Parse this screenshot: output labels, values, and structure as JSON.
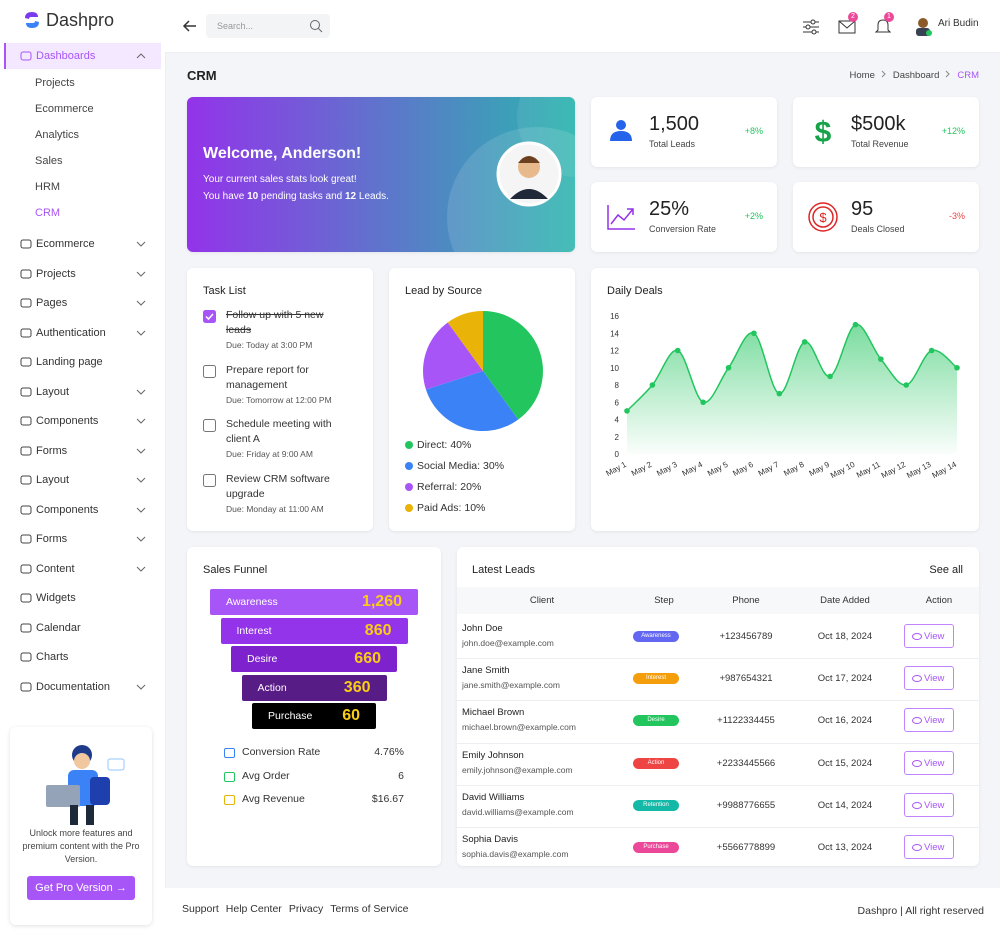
{
  "brand": "Dashpro",
  "search_placeholder": "Search...",
  "header": {
    "message_count": "2",
    "notification_count": "1",
    "user_name": "Ari Budin"
  },
  "sidebar": {
    "items": [
      {
        "label": "Dashboards",
        "children": [
          "Projects",
          "Ecommerce",
          "Analytics",
          "Sales",
          "HRM",
          "CRM"
        ]
      },
      {
        "label": "Ecommerce",
        "expandable": true
      },
      {
        "label": "Projects",
        "expandable": true
      },
      {
        "label": "Pages",
        "expandable": true
      },
      {
        "label": "Authentication",
        "expandable": true
      },
      {
        "label": "Landing page",
        "expandable": false
      },
      {
        "label": "Layout",
        "expandable": true
      },
      {
        "label": "Components",
        "expandable": true
      },
      {
        "label": "Forms",
        "expandable": true
      },
      {
        "label": "Layout",
        "expandable": true
      },
      {
        "label": "Components",
        "expandable": true
      },
      {
        "label": "Forms",
        "expandable": true
      },
      {
        "label": "Content",
        "expandable": true
      },
      {
        "label": "Widgets",
        "expandable": false
      },
      {
        "label": "Calendar",
        "expandable": false
      },
      {
        "label": "Charts",
        "expandable": false
      },
      {
        "label": "Documentation",
        "expandable": true
      }
    ]
  },
  "promo": {
    "text": "Unlock more features and premium content with the Pro Version.",
    "button": "Get Pro Version →"
  },
  "page": {
    "title": "CRM",
    "breadcrumb": [
      "Home",
      "Dashboard",
      "CRM"
    ]
  },
  "welcome": {
    "title": "Welcome, Anderson!",
    "line1": "Your current sales stats look great!",
    "line2": [
      "You have ",
      "10",
      " pending tasks and ",
      "12",
      " Leads."
    ]
  },
  "stats": [
    {
      "value": "1,500",
      "label": "Total Leads",
      "change": "+8%",
      "color": "#2563eb"
    },
    {
      "value": "$500k",
      "label": "Total Revenue",
      "change": "+12%",
      "color": "#16a34a"
    },
    {
      "value": "25%",
      "label": "Conversion Rate",
      "change": "+2%",
      "color": "#9333ea"
    },
    {
      "value": "95",
      "label": "Deals Closed",
      "change": "-3%",
      "color": "#dc2626"
    }
  ],
  "tasks": {
    "title": "Task List",
    "items": [
      {
        "text": "Follow up with 5 new leads",
        "due": "Due: Today at 3:00 PM",
        "done": true
      },
      {
        "text": "Prepare report for management",
        "due": "Due: Tomorrow at 12:00 PM",
        "done": false
      },
      {
        "text": "Schedule meeting with client A",
        "due": "Due: Friday at 9:00 AM",
        "done": false
      },
      {
        "text": "Review CRM software upgrade",
        "due": "Due: Monday at 11:00 AM",
        "done": false
      }
    ]
  },
  "chart_data": [
    {
      "type": "pie",
      "title": "Lead by Source",
      "categories": [
        "Direct",
        "Social Media",
        "Referral",
        "Paid Ads"
      ],
      "values": [
        40,
        30,
        20,
        10
      ],
      "value_labels": [
        "40%",
        "30%",
        "20%",
        "10%"
      ],
      "colors": [
        "#22c55e",
        "#3b82f6",
        "#a855f7",
        "#eab308"
      ]
    },
    {
      "type": "line",
      "title": "Daily Deals",
      "x": [
        "May 1",
        "May 2",
        "May 3",
        "May 4",
        "May 5",
        "May 6",
        "May 7",
        "May 8",
        "May 9",
        "May 10",
        "May 11",
        "May 12",
        "May 13",
        "May 14"
      ],
      "values": [
        5,
        8,
        12,
        6,
        10,
        14,
        7,
        13,
        9,
        15,
        11,
        8,
        12,
        10
      ],
      "color": "#22c55e",
      "ylim": [
        0,
        16
      ],
      "yticks": [
        0,
        2,
        4,
        6,
        8,
        10,
        12,
        14,
        16
      ]
    }
  ],
  "funnel": {
    "title": "Sales Funnel",
    "stages": [
      {
        "name": "Awareness",
        "value": "1,260",
        "color": "#a855f7"
      },
      {
        "name": "Interest",
        "value": "860",
        "color": "#9333ea"
      },
      {
        "name": "Desire",
        "value": "660",
        "color": "#7e22ce"
      },
      {
        "name": "Action",
        "value": "360",
        "color": "#581c87"
      },
      {
        "name": "Purchase",
        "value": "60",
        "color": "#000000"
      }
    ],
    "metrics": [
      {
        "label": "Conversion Rate",
        "value": "4.76%"
      },
      {
        "label": "Avg Order",
        "value": "6"
      },
      {
        "label": "Avg Revenue",
        "value": "$16.67"
      }
    ]
  },
  "leads": {
    "title": "Latest Leads",
    "see_all": "See all",
    "columns": [
      "Client",
      "Step",
      "Phone",
      "Date Added",
      "Action"
    ],
    "step_colors": {
      "Awareness": "#6366f1",
      "Interest": "#f59e0b",
      "Desire": "#22c55e",
      "Action": "#ef4444",
      "Retention": "#14b8a6",
      "Purchase": "#ec4899"
    },
    "rows": [
      {
        "name": "John Doe",
        "email": "john.doe@example.com",
        "step": "Awareness",
        "phone": "+123456789",
        "date": "Oct 18, 2024",
        "action": "View"
      },
      {
        "name": "Jane Smith",
        "email": "jane.smith@example.com",
        "step": "Interest",
        "phone": "+987654321",
        "date": "Oct 17, 2024",
        "action": "View"
      },
      {
        "name": "Michael Brown",
        "email": "michael.brown@example.com",
        "step": "Desire",
        "phone": "+1122334455",
        "date": "Oct 16, 2024",
        "action": "View"
      },
      {
        "name": "Emily Johnson",
        "email": "emily.johnson@example.com",
        "step": "Action",
        "phone": "+2233445566",
        "date": "Oct 15, 2024",
        "action": "View"
      },
      {
        "name": "David Williams",
        "email": "david.williams@example.com",
        "step": "Retention",
        "phone": "+9988776655",
        "date": "Oct 14, 2024",
        "action": "View"
      },
      {
        "name": "Sophia Davis",
        "email": "sophia.davis@example.com",
        "step": "Purchase",
        "phone": "+5566778899",
        "date": "Oct 13, 2024",
        "action": "View"
      }
    ]
  },
  "footer": {
    "links": [
      "Support",
      "Help Center",
      "Privacy",
      "Terms of Service"
    ],
    "copyright": "Dashpro | All right reserved"
  }
}
